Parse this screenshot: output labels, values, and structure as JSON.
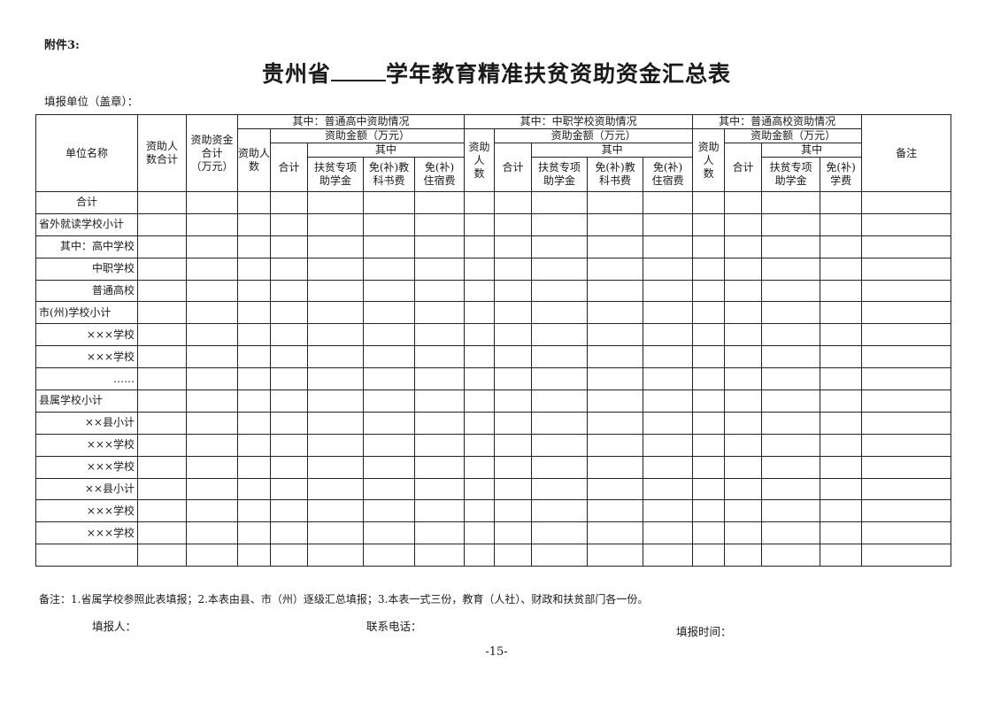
{
  "attachment": "附件3:",
  "title": {
    "prefix": "贵州省",
    "suffix": "学年教育精准扶贫资助资金汇总表"
  },
  "unit_label": "填报单位（盖章）：",
  "header": {
    "unit_name": "单位名称",
    "total_people": "资助人\n数合计",
    "total_funds": "资助资金\n合计\n（万元）",
    "high_school": "其中：普通高中资助情况",
    "vocational": "其中：中职学校资助情况",
    "college": "其中：普通高校资助情况",
    "remarks": "备注",
    "people": "资助人\n数",
    "amount": "资助金额（万元）",
    "subtotal": "合计",
    "of_which": "其中",
    "poverty_grant": "扶贫专项\n助学金",
    "textbook": "免(补)教\n科书费",
    "lodging": "免(补)\n住宿费",
    "tuition": "免(补)\n学费"
  },
  "rows": [
    "合计",
    "省外就读学校小计",
    "其中：高中学校",
    "中职学校",
    "普通高校",
    "市(州)学校小计",
    "×××学校",
    "×××学校",
    "……",
    "县属学校小计",
    "××县小计",
    "×××学校",
    "×××学校",
    "××县小计",
    "×××学校",
    "×××学校",
    ""
  ],
  "footer": {
    "note": "备注：1.省属学校参照此表填报；2.本表由县、市（州）逐级汇总填报；3.本表一式三份，教育（人社）、财政和扶贫部门各一份。",
    "filler": "填报人：",
    "phone": "联系电话：",
    "date": "填报时间：",
    "page": "-15-"
  }
}
